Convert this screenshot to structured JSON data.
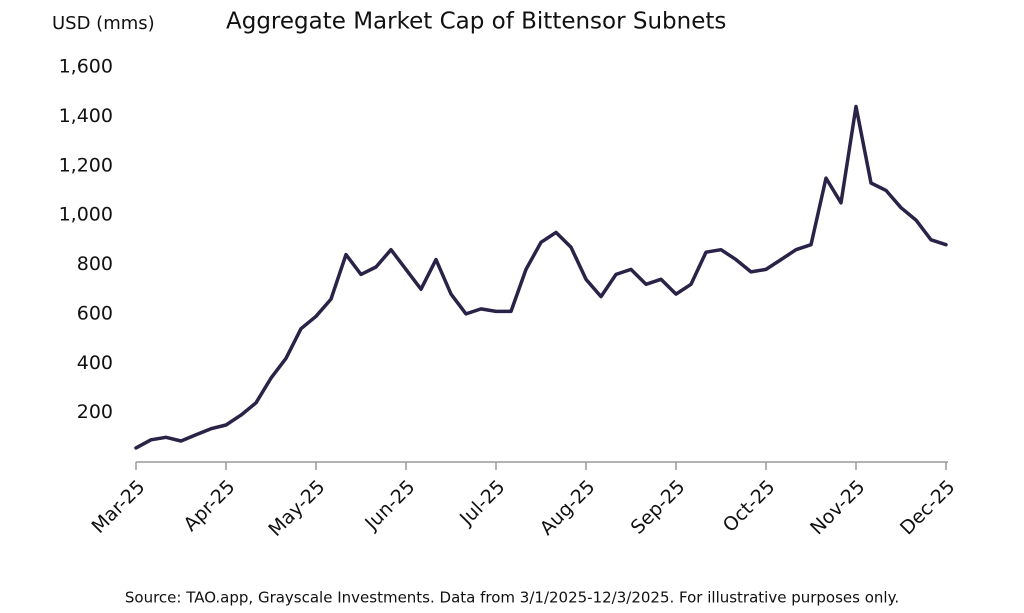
{
  "chart_data": {
    "type": "line",
    "title": "Aggregate Market Cap of Bittensor Subnets",
    "y_axis_label": "USD (mms)",
    "source": "Source: TAO.app, Grayscale Investments. Data from 3/1/2025-12/3/2025. For illustrative purposes only.",
    "categories": [
      "Mar-25",
      null,
      null,
      null,
      null,
      null,
      "Apr-25",
      null,
      null,
      null,
      null,
      null,
      "May-25",
      null,
      null,
      null,
      null,
      null,
      "Jun-25",
      null,
      null,
      null,
      null,
      null,
      "Jul-25",
      null,
      null,
      null,
      null,
      null,
      "Aug-25",
      null,
      null,
      null,
      null,
      null,
      "Sep-25",
      null,
      null,
      null,
      null,
      null,
      "Oct-25",
      null,
      null,
      null,
      null,
      null,
      "Nov-25",
      null,
      null,
      null,
      null,
      null,
      "Dec-25"
    ],
    "series": [
      {
        "name": "Aggregate Market Cap",
        "color": "#2b2347",
        "values": [
          57,
          90,
          100,
          85,
          110,
          135,
          150,
          190,
          240,
          340,
          420,
          540,
          590,
          660,
          840,
          760,
          790,
          860,
          780,
          700,
          820,
          680,
          600,
          620,
          610,
          610,
          780,
          890,
          930,
          870,
          740,
          670,
          760,
          780,
          720,
          740,
          680,
          720,
          850,
          860,
          820,
          770,
          780,
          820,
          860,
          880,
          1150,
          1050,
          1440,
          1130,
          1100,
          1030,
          980,
          900,
          880
        ]
      }
    ],
    "ylim": [
      0,
      1600
    ],
    "yticks": [
      200,
      400,
      600,
      800,
      {
        "value": 1000,
        "label": "1,000"
      },
      {
        "value": 1200,
        "label": "1,200"
      },
      {
        "value": 1400,
        "label": "1,400"
      },
      {
        "value": 1600,
        "label": "1,600"
      }
    ],
    "grid": false
  }
}
